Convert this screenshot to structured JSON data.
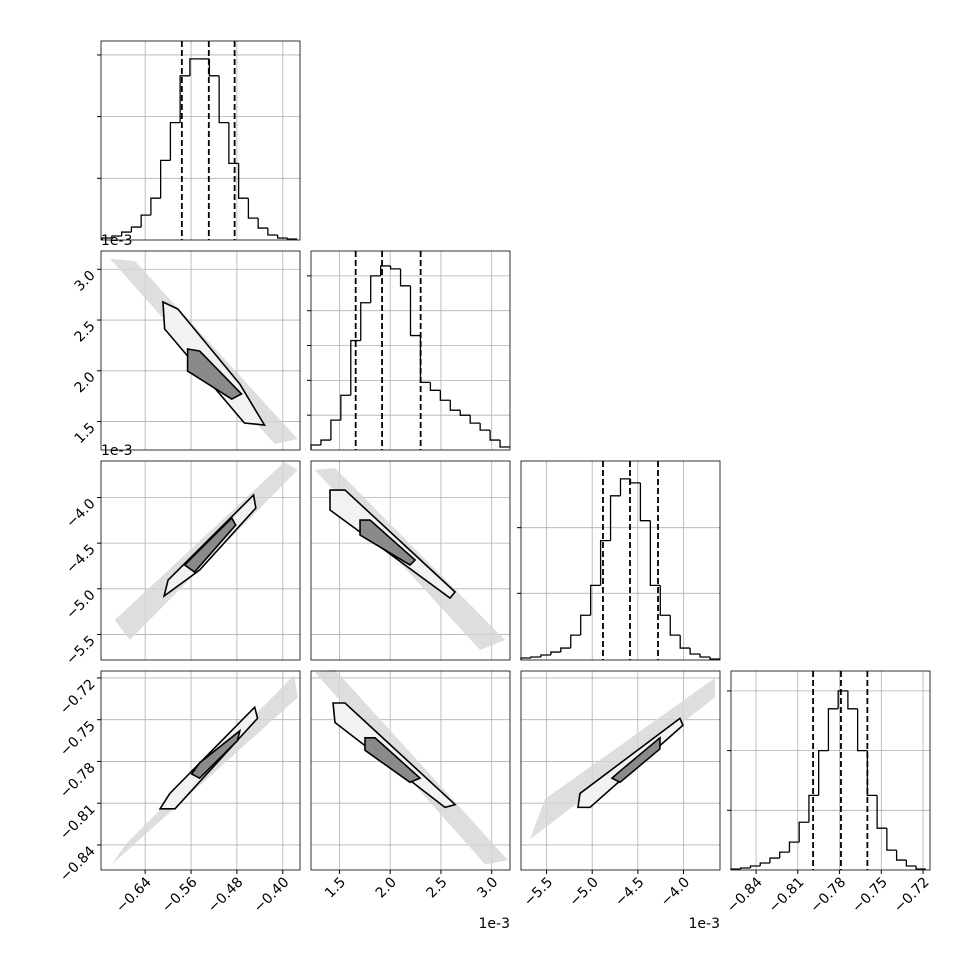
{
  "chart_data": {
    "type": "corner",
    "grid": true,
    "level_colors": [
      "#d6d6d6",
      "#f2f2f2",
      "#8a8a8a"
    ],
    "params": [
      {
        "lim": [
          -0.717,
          -0.37
        ],
        "ticks": [
          {
            "value": -0.64,
            "label": "−0.64"
          },
          {
            "value": -0.56,
            "label": "−0.56"
          },
          {
            "value": -0.48,
            "label": "−0.48"
          },
          {
            "value": -0.4,
            "label": "−0.40"
          }
        ]
      },
      {
        "lim": [
          1.22,
          3.18
        ],
        "ticks": [
          1.5,
          {
            "value": 2,
            "label": "2.0"
          },
          2.5,
          {
            "value": 3,
            "label": "3.0"
          }
        ],
        "offset_label": "1e-3"
      },
      {
        "lim": [
          -5.78,
          -3.6
        ],
        "ticks": [
          {
            "value": -5.5,
            "label": "−5.5"
          },
          {
            "value": -5,
            "label": "−5.0"
          },
          {
            "value": -4.5,
            "label": "−4.5"
          },
          {
            "value": -4,
            "label": "−4.0"
          }
        ],
        "offset_label": "1e-3"
      },
      {
        "lim": [
          -0.858,
          -0.715
        ],
        "ticks": [
          {
            "value": -0.84,
            "label": "−0.84"
          },
          {
            "value": -0.81,
            "label": "−0.81"
          },
          {
            "value": -0.78,
            "label": "−0.78"
          },
          {
            "value": -0.75,
            "label": "−0.75"
          },
          {
            "value": -0.72,
            "label": "−0.72"
          }
        ]
      }
    ],
    "histograms": [
      {
        "bins": [
          -0.715,
          -0.698,
          -0.681,
          -0.664,
          -0.647,
          -0.63,
          -0.613,
          -0.596,
          -0.579,
          -0.562,
          -0.545,
          -0.528,
          -0.511,
          -0.494,
          -0.477,
          -0.46,
          -0.443,
          -0.426,
          -0.409,
          -0.392,
          -0.375
        ],
        "counts": [
          2,
          4,
          8,
          13,
          25,
          42,
          80,
          118,
          165,
          182,
          182,
          165,
          118,
          77,
          42,
          22,
          12,
          5,
          2,
          1
        ],
        "ylim": [
          0,
          200
        ],
        "yticks": [
          62,
          124,
          186
        ],
        "quantiles": [
          -0.576,
          -0.529,
          -0.484
        ],
        "color": "#000000"
      },
      {
        "bins": [
          1.22,
          1.318,
          1.416,
          1.514,
          1.612,
          1.71,
          1.808,
          1.906,
          2.004,
          2.102,
          2.2,
          2.298,
          2.396,
          2.494,
          2.592,
          2.69,
          2.788,
          2.886,
          2.984,
          3.082,
          3.18
        ],
        "counts": [
          5,
          10,
          30,
          55,
          110,
          148,
          175,
          185,
          182,
          165,
          115,
          68,
          60,
          50,
          40,
          35,
          27,
          20,
          10,
          3
        ],
        "ylim": [
          0,
          200
        ],
        "yticks": [
          35,
          70,
          105,
          140,
          175
        ],
        "quantiles": [
          1.66,
          1.92,
          2.3
        ],
        "color": "#000000"
      },
      {
        "bins": [
          -5.78,
          -5.671,
          -5.562,
          -5.453,
          -5.344,
          -5.235,
          -5.126,
          -5.017,
          -4.908,
          -4.799,
          -4.69,
          -4.581,
          -4.472,
          -4.363,
          -4.254,
          -4.145,
          -4.036,
          -3.927,
          -3.818,
          -3.709,
          -3.6
        ],
        "counts": [
          2,
          3,
          5,
          8,
          12,
          25,
          45,
          75,
          120,
          165,
          182,
          178,
          140,
          75,
          45,
          25,
          12,
          6,
          3,
          1
        ],
        "ylim": [
          0,
          200
        ],
        "yticks": [
          67,
          133
        ],
        "quantiles": [
          -4.882,
          -4.586,
          -4.279
        ],
        "color": "#000000"
      },
      {
        "bins": [
          -0.858,
          -0.851,
          -0.844,
          -0.837,
          -0.83,
          -0.823,
          -0.816,
          -0.809,
          -0.802,
          -0.795,
          -0.788,
          -0.781,
          -0.774,
          -0.767,
          -0.76,
          -0.753,
          -0.746,
          -0.739,
          -0.732,
          -0.725,
          -0.718
        ],
        "counts": [
          1,
          2,
          4,
          7,
          12,
          18,
          28,
          48,
          75,
          120,
          162,
          180,
          162,
          120,
          75,
          42,
          20,
          10,
          4,
          1
        ],
        "ylim": [
          0,
          200
        ],
        "yticks": [
          60,
          120,
          180
        ],
        "quantiles": [
          -0.799,
          -0.779,
          -0.76
        ],
        "color": "#000000"
      }
    ],
    "panels": [
      {
        "levels": [
          {
            "x": [
              -0.701,
              -0.658,
              -0.374,
              -0.414
            ],
            "y": [
              3.102,
              3.082,
              1.328,
              1.279
            ]
          },
          {
            "x": [
              -0.609,
              -0.583,
              -0.475,
              -0.432,
              -0.467,
              -0.606
            ],
            "y": [
              2.678,
              2.609,
              1.87,
              1.466,
              1.486,
              2.412
            ]
          },
          {
            "x": [
              -0.566,
              -0.545,
              -0.472,
              -0.489,
              -0.566
            ],
            "y": [
              2.215,
              2.195,
              1.772,
              1.722,
              1.998
            ]
          }
        ]
      },
      {
        "levels": [
          {
            "x": [
              -0.693,
              -0.667,
              -0.374,
              -0.397
            ],
            "y": [
              -5.342,
              -5.561,
              -3.699,
              -3.611
            ]
          },
          {
            "x": [
              -0.607,
              -0.6,
              -0.451,
              -0.447,
              -0.545
            ],
            "y": [
              -5.079,
              -4.904,
              -3.973,
              -4.115,
              -4.794
            ]
          },
          {
            "x": [
              -0.571,
              -0.554,
              -0.489,
              -0.482,
              -0.554
            ],
            "y": [
              -4.739,
              -4.63,
              -4.225,
              -4.301,
              -4.816
            ]
          }
        ]
      },
      {
        "levels": [
          {
            "x": [
              1.259,
              1.456,
              3.131,
              2.885
            ],
            "y": [
              -3.699,
              -3.677,
              -5.561,
              -5.67
            ]
          },
          {
            "x": [
              1.407,
              1.555,
              2.639,
              2.589,
              1.407
            ],
            "y": [
              -3.918,
              -3.918,
              -5.035,
              -5.101,
              -4.137
            ]
          },
          {
            "x": [
              1.703,
              1.801,
              2.245,
              2.195,
              1.703
            ],
            "y": [
              -4.247,
              -4.247,
              -4.685,
              -4.739,
              -4.411
            ]
          }
        ]
      },
      {
        "levels": [
          {
            "x": [
              -0.698,
              -0.675,
              -0.38,
              -0.374
            ],
            "y": [
              -0.854,
              -0.84,
              -0.718,
              -0.734
            ]
          },
          {
            "x": [
              -0.614,
              -0.597,
              -0.449,
              -0.444,
              -0.588
            ],
            "y": [
              -0.814,
              -0.803,
              -0.741,
              -0.749,
              -0.814
            ]
          },
          {
            "x": [
              -0.559,
              -0.545,
              -0.475,
              -0.479,
              -0.545
            ],
            "y": [
              -0.789,
              -0.781,
              -0.758,
              -0.765,
              -0.792
            ]
          }
        ]
      },
      {
        "levels": [
          {
            "x": [
              1.259,
              1.456,
              3.161,
              2.934
            ],
            "y": [
              -0.716,
              -0.714,
              -0.851,
              -0.854
            ]
          },
          {
            "x": [
              1.437,
              1.555,
              2.639,
              2.54,
              1.456
            ],
            "y": [
              -0.738,
              -0.738,
              -0.811,
              -0.813,
              -0.752
            ]
          },
          {
            "x": [
              1.752,
              1.851,
              2.294,
              2.195,
              1.752
            ],
            "y": [
              -0.763,
              -0.763,
              -0.792,
              -0.795,
              -0.772
            ]
          }
        ]
      },
      {
        "levels": [
          {
            "x": [
              -5.681,
              -5.517,
              -3.655,
              -3.655
            ],
            "y": [
              -0.836,
              -0.807,
              -0.72,
              -0.734
            ]
          },
          {
            "x": [
              -5.156,
              -5.134,
              -4.039,
              -4.006,
              -5.024
            ],
            "y": [
              -0.813,
              -0.803,
              -0.749,
              -0.754,
              -0.813
            ]
          },
          {
            "x": [
              -4.783,
              -4.696,
              -4.258,
              -4.258,
              -4.696
            ],
            "y": [
              -0.792,
              -0.787,
              -0.763,
              -0.771,
              -0.795
            ]
          }
        ]
      }
    ]
  }
}
